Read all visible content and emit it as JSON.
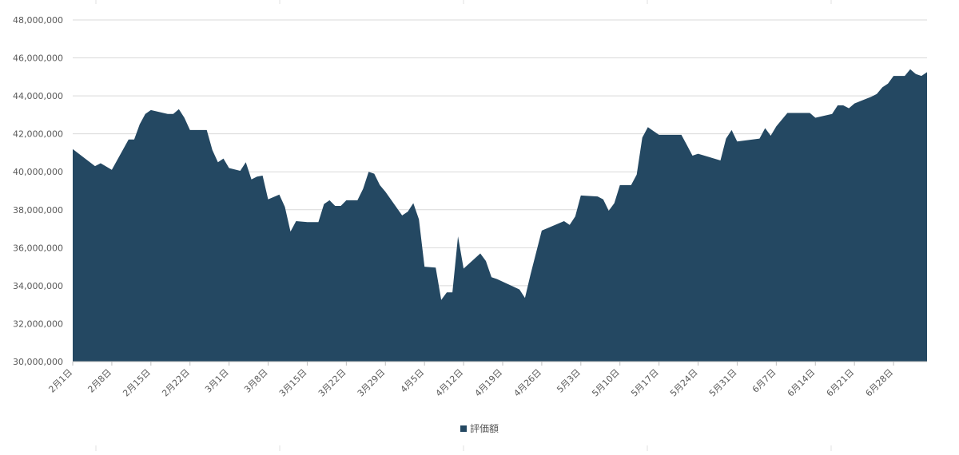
{
  "colors": {
    "area_fill": "#244862",
    "grid": "#d9d9d9",
    "axis_text": "#595959",
    "outer_grid": "#e2e2e2"
  },
  "chart_data": {
    "type": "area",
    "title": "",
    "xlabel": "",
    "ylabel": "",
    "ylim": [
      30000000,
      48000000
    ],
    "y_ticks": [
      30000000,
      32000000,
      34000000,
      36000000,
      38000000,
      40000000,
      42000000,
      44000000,
      46000000,
      48000000
    ],
    "y_tick_labels": [
      "30,000,000",
      "32,000,000",
      "34,000,000",
      "36,000,000",
      "38,000,000",
      "40,000,000",
      "42,000,000",
      "44,000,000",
      "46,000,000",
      "48,000,000"
    ],
    "x_tick_labels": [
      "2月1日",
      "2月8日",
      "2月15日",
      "2月22日",
      "3月1日",
      "3月8日",
      "3月15日",
      "3月22日",
      "3月29日",
      "4月5日",
      "4月12日",
      "4月19日",
      "4月26日",
      "5月3日",
      "5月10日",
      "5月17日",
      "5月24日",
      "5月31日",
      "6月7日",
      "6月14日",
      "6月21日",
      "6月28日"
    ],
    "x_tick_days": [
      0,
      7,
      14,
      21,
      28,
      35,
      42,
      49,
      56,
      63,
      70,
      77,
      84,
      91,
      98,
      105,
      112,
      119,
      126,
      133,
      140,
      147
    ],
    "x_range_days": [
      0,
      153
    ],
    "grid": true,
    "legend_position": "bottom",
    "series": [
      {
        "name": "評価額",
        "points": [
          [
            0,
            41200000
          ],
          [
            4,
            40300000
          ],
          [
            5,
            40450000
          ],
          [
            7,
            40100000
          ],
          [
            10,
            41700000
          ],
          [
            11,
            41700000
          ],
          [
            12,
            42500000
          ],
          [
            13,
            43050000
          ],
          [
            14,
            43250000
          ],
          [
            17,
            43050000
          ],
          [
            18,
            43050000
          ],
          [
            19,
            43300000
          ],
          [
            20,
            42850000
          ],
          [
            21,
            42200000
          ],
          [
            24,
            42200000
          ],
          [
            25,
            41150000
          ],
          [
            26,
            40500000
          ],
          [
            27,
            40700000
          ],
          [
            28,
            40200000
          ],
          [
            30,
            40050000
          ],
          [
            31,
            40500000
          ],
          [
            32,
            39600000
          ],
          [
            33,
            39750000
          ],
          [
            34,
            39800000
          ],
          [
            35,
            38550000
          ],
          [
            37,
            38800000
          ],
          [
            38,
            38150000
          ],
          [
            39,
            36850000
          ],
          [
            40,
            37400000
          ],
          [
            42,
            37350000
          ],
          [
            44,
            37350000
          ],
          [
            45,
            38300000
          ],
          [
            46,
            38500000
          ],
          [
            47,
            38200000
          ],
          [
            48,
            38200000
          ],
          [
            49,
            38500000
          ],
          [
            51,
            38500000
          ],
          [
            52,
            39100000
          ],
          [
            53,
            40000000
          ],
          [
            54,
            39900000
          ],
          [
            55,
            39300000
          ],
          [
            56,
            38950000
          ],
          [
            59,
            37700000
          ],
          [
            60,
            37900000
          ],
          [
            61,
            38350000
          ],
          [
            62,
            37500000
          ],
          [
            63,
            35000000
          ],
          [
            65,
            34950000
          ],
          [
            66,
            33250000
          ],
          [
            67,
            33650000
          ],
          [
            68,
            33650000
          ],
          [
            69,
            36600000
          ],
          [
            70,
            34900000
          ],
          [
            73,
            35700000
          ],
          [
            74,
            35300000
          ],
          [
            75,
            34450000
          ],
          [
            76,
            34350000
          ],
          [
            80,
            33800000
          ],
          [
            81,
            33350000
          ],
          [
            82,
            34600000
          ],
          [
            84,
            36900000
          ],
          [
            88,
            37400000
          ],
          [
            89,
            37200000
          ],
          [
            90,
            37650000
          ],
          [
            91,
            38750000
          ],
          [
            94,
            38700000
          ],
          [
            95,
            38550000
          ],
          [
            96,
            37950000
          ],
          [
            97,
            38350000
          ],
          [
            98,
            39300000
          ],
          [
            100,
            39300000
          ],
          [
            101,
            39850000
          ],
          [
            102,
            41800000
          ],
          [
            103,
            42350000
          ],
          [
            104,
            42150000
          ],
          [
            105,
            41950000
          ],
          [
            109,
            41950000
          ],
          [
            110,
            41400000
          ],
          [
            111,
            40850000
          ],
          [
            112,
            40950000
          ],
          [
            116,
            40600000
          ],
          [
            117,
            41750000
          ],
          [
            118,
            42200000
          ],
          [
            119,
            41600000
          ],
          [
            123,
            41750000
          ],
          [
            124,
            42300000
          ],
          [
            125,
            41900000
          ],
          [
            126,
            42400000
          ],
          [
            128,
            43100000
          ],
          [
            132,
            43100000
          ],
          [
            133,
            42850000
          ],
          [
            136,
            43050000
          ],
          [
            137,
            43500000
          ],
          [
            138,
            43500000
          ],
          [
            139,
            43350000
          ],
          [
            140,
            43600000
          ],
          [
            143,
            43950000
          ],
          [
            144,
            44100000
          ],
          [
            145,
            44450000
          ],
          [
            146,
            44650000
          ],
          [
            147,
            45050000
          ],
          [
            149,
            45050000
          ],
          [
            150,
            45400000
          ],
          [
            151,
            45150000
          ],
          [
            152,
            45050000
          ],
          [
            153,
            45250000
          ]
        ]
      }
    ]
  }
}
